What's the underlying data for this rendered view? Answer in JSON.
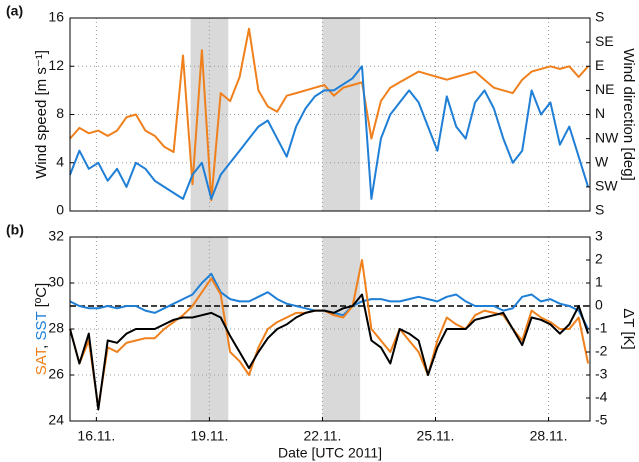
{
  "chart_data": [
    {
      "type": "line",
      "panel_label": "(a)",
      "ylabel": "Wind speed [m s⁻¹]",
      "ylabel_color": "#1f7fd6",
      "y2label": "Wind direction [deg]",
      "y2label_color": "#f0801c",
      "xlim": [
        15.3,
        29.1
      ],
      "ylim": [
        0,
        16
      ],
      "yticks": [
        0,
        4,
        8,
        12,
        16
      ],
      "y2lim": [
        180,
        540
      ],
      "y2ticks": [
        {
          "value": 180,
          "label": "S"
        },
        {
          "value": 225,
          "label": "SW"
        },
        {
          "value": 270,
          "label": "W"
        },
        {
          "value": 315,
          "label": "NW"
        },
        {
          "value": 360,
          "label": "N"
        },
        {
          "value": 405,
          "label": "NE"
        },
        {
          "value": 450,
          "label": "E"
        },
        {
          "value": 495,
          "label": "SE"
        },
        {
          "value": 540,
          "label": "S"
        }
      ],
      "grid": true,
      "shaded": [
        [
          18.5,
          19.5
        ],
        [
          22.0,
          23.0
        ]
      ],
      "x": [
        15.3,
        15.55,
        15.8,
        16.05,
        16.3,
        16.55,
        16.8,
        17.05,
        17.3,
        17.55,
        17.8,
        18.05,
        18.3,
        18.55,
        18.8,
        19.05,
        19.3,
        19.55,
        19.8,
        20.05,
        20.3,
        20.55,
        20.8,
        21.05,
        21.3,
        21.55,
        21.8,
        22.05,
        22.3,
        22.55,
        22.8,
        23.05,
        23.3,
        23.55,
        23.8,
        24.05,
        24.3,
        24.55,
        24.8,
        25.05,
        25.3,
        25.55,
        25.8,
        26.05,
        26.3,
        26.55,
        26.8,
        27.05,
        27.3,
        27.55,
        27.8,
        28.05,
        28.3,
        28.55,
        28.8,
        29.05
      ],
      "series": [
        {
          "name": "Wind direction",
          "color": "#f0801c",
          "axis": "y2",
          "values": [
            315,
            335,
            325,
            330,
            320,
            330,
            355,
            360,
            330,
            320,
            300,
            290,
            470,
            230,
            480,
            200,
            400,
            385,
            430,
            520,
            405,
            375,
            365,
            395,
            400,
            405,
            410,
            415,
            395,
            410,
            415,
            420,
            315,
            385,
            410,
            420,
            430,
            440,
            435,
            430,
            425,
            430,
            435,
            440,
            425,
            410,
            405,
            400,
            425,
            440,
            445,
            450,
            445,
            450,
            430,
            450
          ]
        },
        {
          "name": "Wind speed",
          "color": "#1f7fd6",
          "values": [
            3,
            5,
            3.5,
            4,
            2.5,
            3.5,
            2,
            4,
            3.5,
            2.5,
            2,
            1.5,
            1,
            3,
            4,
            1,
            3,
            4,
            5,
            6,
            7,
            7.5,
            6,
            4.5,
            7,
            8.5,
            9.5,
            10,
            10,
            10.5,
            11,
            12,
            1,
            6,
            8,
            9,
            10,
            9,
            7,
            5,
            9.5,
            7,
            6,
            9,
            10,
            8.5,
            6,
            4,
            5,
            10,
            8,
            9,
            5.5,
            7,
            4.5,
            2
          ]
        }
      ]
    },
    {
      "type": "line",
      "panel_label": "(b)",
      "ylabel_parts": [
        {
          "text": "SAT",
          "color": "#f0801c"
        },
        {
          "text": ", ",
          "color": "#111111"
        },
        {
          "text": "SST",
          "color": "#1f7fd6"
        },
        {
          "text": " [ºC]",
          "color": "#111111"
        }
      ],
      "y2label": "ΔT [K]",
      "y2label_color": "#111111",
      "xlabel": "Date [UTC 2011]",
      "xlim": [
        15.3,
        29.1
      ],
      "xticks": [
        {
          "value": 16,
          "label": "16.11."
        },
        {
          "value": 19,
          "label": "19.11."
        },
        {
          "value": 22,
          "label": "22.11."
        },
        {
          "value": 25,
          "label": "25.11."
        },
        {
          "value": 28,
          "label": "28.11."
        }
      ],
      "ylim": [
        24,
        32
      ],
      "yticks": [
        24,
        26,
        28,
        30,
        32
      ],
      "y2lim": [
        -5,
        3
      ],
      "y2ticks": [
        -5,
        -4,
        -3,
        -2,
        -1,
        0,
        1,
        2,
        3
      ],
      "grid": true,
      "shaded": [
        [
          18.5,
          19.5
        ],
        [
          22.0,
          23.0
        ]
      ],
      "hline": {
        "value": 0,
        "axis": "y2",
        "color": "#000000"
      },
      "x": [
        15.3,
        15.55,
        15.8,
        16.05,
        16.3,
        16.55,
        16.8,
        17.05,
        17.3,
        17.55,
        17.8,
        18.05,
        18.3,
        18.55,
        18.8,
        19.05,
        19.3,
        19.55,
        19.8,
        20.05,
        20.3,
        20.55,
        20.8,
        21.05,
        21.3,
        21.55,
        21.8,
        22.05,
        22.3,
        22.55,
        22.8,
        23.05,
        23.3,
        23.55,
        23.8,
        24.05,
        24.3,
        24.55,
        24.8,
        25.05,
        25.3,
        25.55,
        25.8,
        26.05,
        26.3,
        26.55,
        26.8,
        27.05,
        27.3,
        27.55,
        27.8,
        28.05,
        28.3,
        28.55,
        28.8,
        29.05
      ],
      "series": [
        {
          "name": "SST",
          "color": "#1f7fd6",
          "values": [
            29.2,
            29.0,
            28.9,
            28.9,
            29.0,
            28.9,
            29.0,
            29.0,
            28.8,
            28.7,
            28.9,
            29.1,
            29.3,
            29.5,
            30.0,
            30.4,
            29.6,
            29.3,
            29.2,
            29.2,
            29.4,
            29.6,
            29.3,
            29.1,
            29.0,
            28.9,
            28.8,
            28.8,
            28.7,
            28.6,
            29.0,
            29.2,
            29.3,
            29.3,
            29.2,
            29.2,
            29.3,
            29.4,
            29.3,
            29.2,
            29.4,
            29.5,
            29.2,
            29.0,
            29.0,
            29.0,
            28.8,
            28.9,
            29.4,
            29.5,
            29.2,
            29.3,
            29.1,
            29.0,
            28.8,
            28.0
          ]
        },
        {
          "name": "SAT",
          "color": "#f0801c",
          "values": [
            28.0,
            26.5,
            27.5,
            24.6,
            27.2,
            27.0,
            27.4,
            27.5,
            27.6,
            27.6,
            28.0,
            28.3,
            28.6,
            29.0,
            29.6,
            30.2,
            29.5,
            27.0,
            26.6,
            26.0,
            27.2,
            28.0,
            28.3,
            28.5,
            28.7,
            28.7,
            28.8,
            28.8,
            28.6,
            28.5,
            29.0,
            31.0,
            28.0,
            27.5,
            27.0,
            28.0,
            27.5,
            27.0,
            26.0,
            27.5,
            28.5,
            28.2,
            28.0,
            28.6,
            28.8,
            28.7,
            28.6,
            28.0,
            27.5,
            28.8,
            28.5,
            28.3,
            28.0,
            28.0,
            28.5,
            26.5
          ]
        },
        {
          "name": "ΔT",
          "color": "#000000",
          "axis": "y2",
          "values": [
            -1.0,
            -2.5,
            -1.2,
            -4.5,
            -1.5,
            -1.6,
            -1.2,
            -1.0,
            -1.0,
            -1.0,
            -0.8,
            -0.6,
            -0.5,
            -0.5,
            -0.4,
            -0.3,
            -0.5,
            -1.3,
            -2.0,
            -2.7,
            -2.0,
            -1.4,
            -1.0,
            -0.8,
            -0.5,
            -0.3,
            -0.2,
            -0.2,
            -0.3,
            -0.1,
            0.0,
            0.5,
            -1.5,
            -1.8,
            -2.5,
            -1.0,
            -1.2,
            -1.5,
            -3.0,
            -1.8,
            -1.0,
            -1.0,
            -1.0,
            -0.6,
            -0.5,
            -0.4,
            -0.3,
            -1.0,
            -1.7,
            -0.5,
            -0.6,
            -0.8,
            -1.2,
            -0.8,
            0.0,
            -1.2
          ]
        }
      ]
    }
  ]
}
